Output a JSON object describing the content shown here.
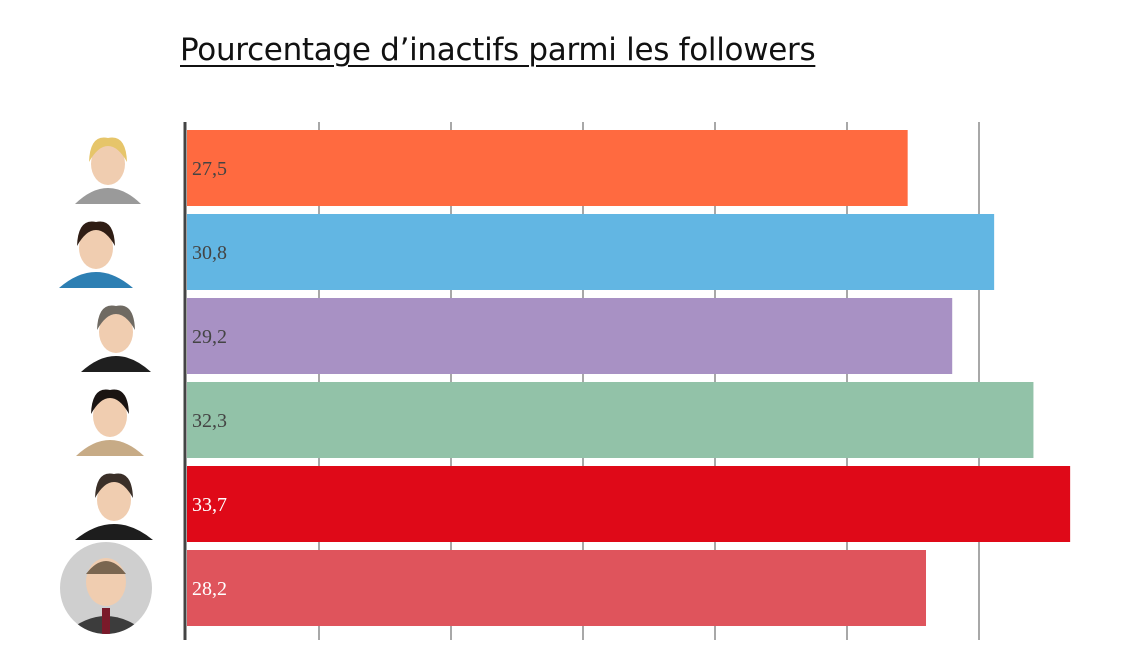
{
  "chart_data": {
    "type": "bar",
    "orientation": "horizontal",
    "title": "Pourcentage d’inactifs parmi les followers",
    "xlabel": "",
    "ylabel": "",
    "xlim": [
      0,
      34
    ],
    "grid": true,
    "legend": "none",
    "categories": [
      "",
      "",
      "",
      "",
      "",
      ""
    ],
    "values": [
      27.5,
      30.8,
      29.2,
      32.3,
      33.7,
      28.2
    ],
    "value_labels": [
      "27,5",
      "30,8",
      "29,2",
      "32,3",
      "33,7",
      "28,2"
    ],
    "colors": [
      "#ff6a40",
      "#62b6e3",
      "#a891c4",
      "#92c2a8",
      "#df0918",
      "#df545c"
    ],
    "label_colors": [
      "#444444",
      "#444444",
      "#444444",
      "#444444",
      "#ffffff",
      "#ffffff"
    ],
    "row_icons": [
      "portrait-woman-blonde",
      "portrait-woman-brunette",
      "portrait-man-grey-suit",
      "portrait-woman-dark-hair",
      "portrait-man-glasses",
      "portrait-man-round"
    ]
  }
}
